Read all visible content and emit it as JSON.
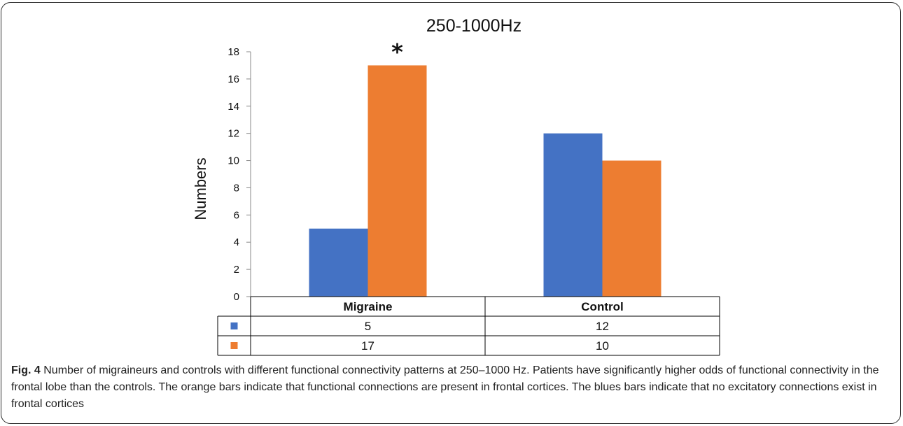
{
  "chart_data": {
    "type": "bar",
    "title": "250-1000Hz",
    "ylabel": "Numbers",
    "xlabel": "",
    "categories": [
      "Migraine",
      "Control"
    ],
    "ylim": [
      0,
      18
    ],
    "yticks": [
      0,
      2,
      4,
      6,
      8,
      10,
      12,
      14,
      16,
      18
    ],
    "grid": false,
    "series": [
      {
        "name": "",
        "color": "#4472C4",
        "values": [
          5,
          12
        ]
      },
      {
        "name": "",
        "color": "#ED7D31",
        "values": [
          17,
          10
        ]
      }
    ],
    "annotations": [
      {
        "text": "*",
        "category": "Migraine",
        "series_index": 1
      }
    ],
    "data_table": true
  },
  "caption": {
    "label": "Fig. 4",
    "text": "Number of migraineurs and controls with different functional connectivity patterns at 250–1000 Hz. Patients have significantly higher odds of functional connectivity in the frontal lobe than the controls. The orange bars indicate that functional connections are present in frontal cortices. The blues bars indicate that no excitatory connections exist in frontal cortices"
  }
}
